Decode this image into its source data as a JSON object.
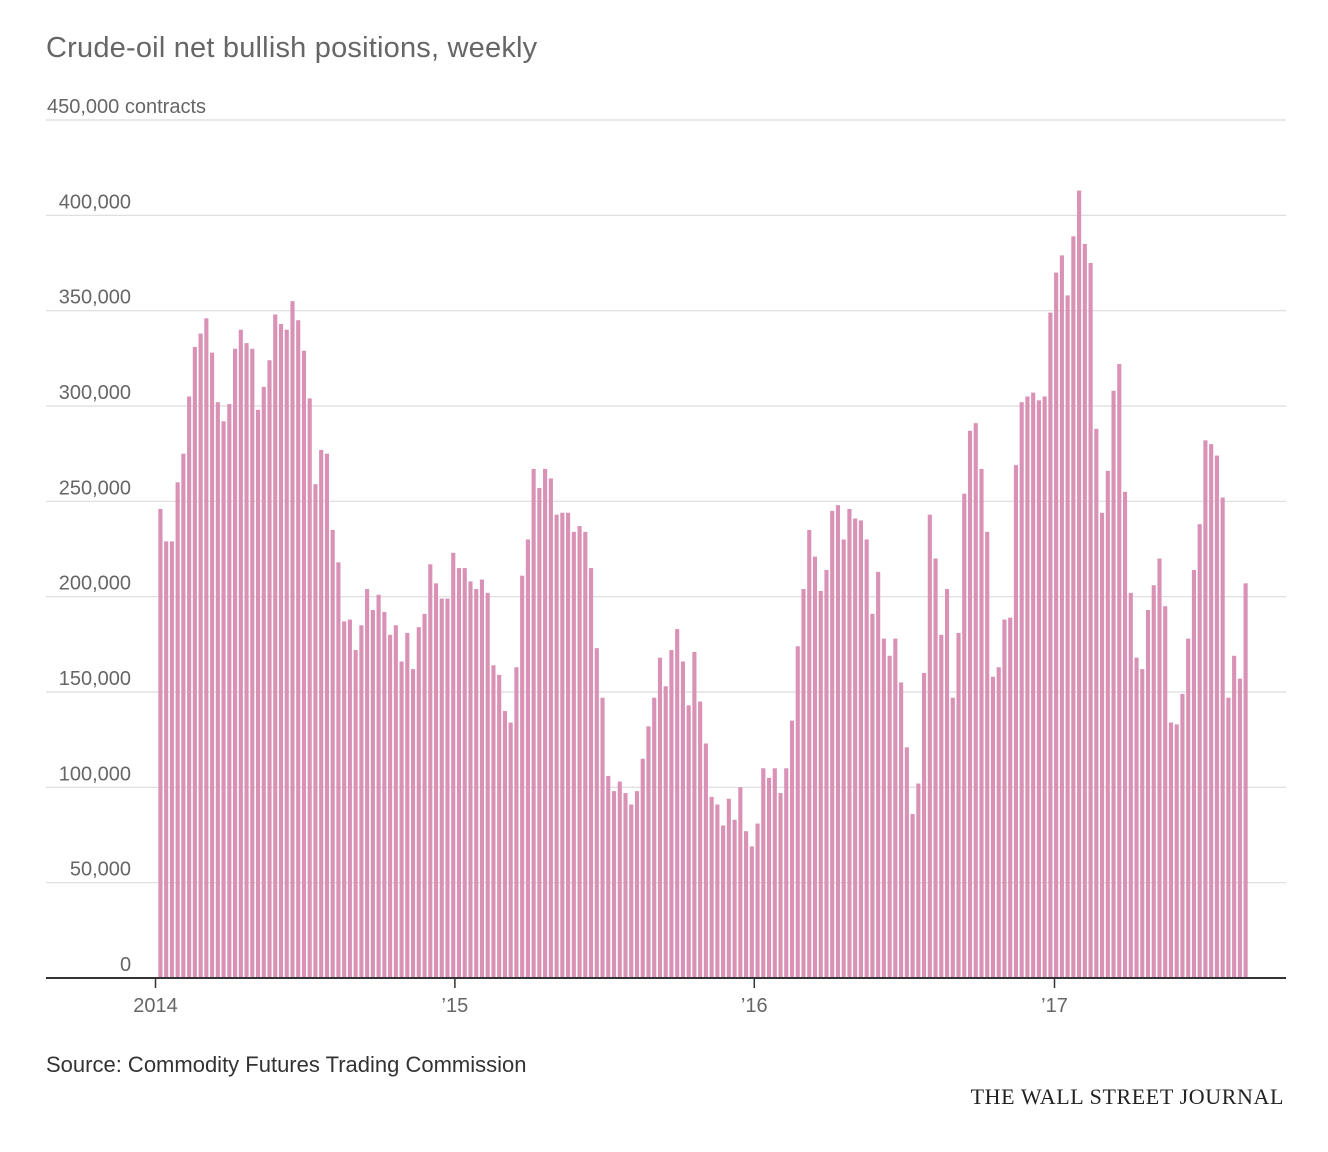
{
  "chart_data": {
    "type": "bar",
    "title": "Crude-oil net bullish positions, weekly",
    "ylabel": "contracts",
    "ylim": [
      0,
      450000
    ],
    "yticks": [
      0,
      50000,
      100000,
      150000,
      200000,
      250000,
      300000,
      350000,
      400000,
      450000
    ],
    "ytick_labels": [
      "0",
      "50,000",
      "100,000",
      "150,000",
      "200,000",
      "250,000",
      "300,000",
      "350,000",
      "400,000",
      "450,000 contracts"
    ],
    "xticks": [
      {
        "date": "2014-01-01",
        "label": "2014"
      },
      {
        "date": "2015-01-01",
        "label": "’15"
      },
      {
        "date": "2016-01-01",
        "label": "’16"
      },
      {
        "date": "2017-01-01",
        "label": "’17"
      }
    ],
    "color": "#d992b6",
    "grid": true,
    "series": [
      {
        "start_date": "2014-01-07",
        "interval": "weekly",
        "values": [
          246000,
          229000,
          229000,
          260000,
          275000,
          305000,
          331000,
          338000,
          346000,
          328000,
          302000,
          292000,
          301000,
          330000,
          340000,
          333000,
          330000,
          298000,
          310000,
          324000,
          348000,
          343000,
          340000,
          355000,
          345000,
          329000,
          304000,
          259000,
          277000,
          275000,
          235000,
          218000,
          187000,
          188000,
          172000,
          185000,
          204000,
          193000,
          201000,
          192000,
          180000,
          185000,
          166000,
          181000,
          162000,
          184000,
          191000,
          217000,
          207000,
          199000,
          199000,
          223000,
          215000,
          215000,
          208000,
          204000,
          209000,
          202000,
          164000,
          159000,
          140000,
          134000,
          163000,
          211000,
          230000,
          267000,
          257000,
          267000,
          262000,
          243000,
          244000,
          244000,
          234000,
          237000,
          234000,
          215000,
          173000,
          147000,
          106000,
          98000,
          103000,
          97000,
          91000,
          98000,
          115000,
          132000,
          147000,
          168000,
          153000,
          172000,
          183000,
          166000,
          143000,
          171000,
          145000,
          123000,
          95000,
          91000,
          80000,
          94000,
          83000,
          100000,
          77000,
          69000,
          81000,
          110000,
          105000,
          110000,
          97000,
          110000,
          135000,
          174000,
          204000,
          235000,
          221000,
          203000,
          214000,
          245000,
          248000,
          230000,
          246000,
          241000,
          240000,
          230000,
          191000,
          213000,
          178000,
          169000,
          178000,
          155000,
          121000,
          86000,
          102000,
          160000,
          243000,
          220000,
          180000,
          204000,
          147000,
          181000,
          254000,
          287000,
          291000,
          267000,
          234000,
          158000,
          163000,
          188000,
          189000,
          269000,
          302000,
          305000,
          307000,
          303000,
          305000,
          349000,
          370000,
          379000,
          358000,
          389000,
          413000,
          385000,
          375000,
          288000,
          244000,
          266000,
          308000,
          322000,
          255000,
          202000,
          168000,
          162000,
          193000,
          206000,
          220000,
          195000,
          134000,
          133000,
          149000,
          178000,
          214000,
          238000,
          282000,
          280000,
          274000,
          252000,
          147000,
          169000,
          157000,
          207000
        ]
      }
    ]
  },
  "source": "Source: Commodity Futures Trading Commission",
  "brand": "THE WALL STREET JOURNAL"
}
